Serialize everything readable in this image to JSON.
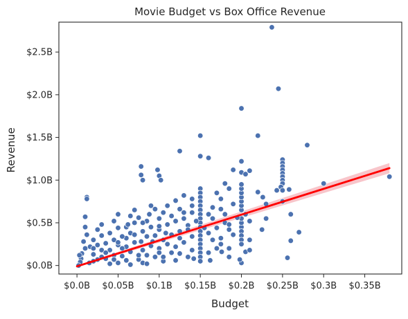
{
  "chart_data": {
    "type": "scatter",
    "title": "Movie Budget vs Box Office Revenue",
    "xlabel": "Budget",
    "ylabel": "Revenue",
    "xlim": [
      -0.022,
      0.395
    ],
    "ylim": [
      -0.1,
      2.85
    ],
    "x_ticks": [
      {
        "value": 0.0,
        "label": "$0.0B"
      },
      {
        "value": 0.05,
        "label": "$0.05B"
      },
      {
        "value": 0.1,
        "label": "$0.1B"
      },
      {
        "value": 0.15,
        "label": "$0.15B"
      },
      {
        "value": 0.2,
        "label": "$0.2B"
      },
      {
        "value": 0.25,
        "label": "$0.25B"
      },
      {
        "value": 0.3,
        "label": "$0.3B"
      },
      {
        "value": 0.35,
        "label": "$0.35B"
      }
    ],
    "y_ticks": [
      {
        "value": 0.0,
        "label": "$0.0B"
      },
      {
        "value": 0.5,
        "label": "$0.5B"
      },
      {
        "value": 1.0,
        "label": "$1.0B"
      },
      {
        "value": 1.5,
        "label": "$1.5B"
      },
      {
        "value": 2.0,
        "label": "$2.0B"
      },
      {
        "value": 2.5,
        "label": "$2.5B"
      }
    ],
    "grid": false,
    "legend": "none",
    "colors": {
      "points": "#4c72b0",
      "point_edge": "#ffffff",
      "regression": "#ff0000",
      "confidence_band": "#f4a6ad",
      "axes": "#262626"
    },
    "regression": {
      "x": [
        0.0,
        0.38
      ],
      "y": [
        -0.01,
        1.14
      ],
      "ci_half_width": [
        0.012,
        0.06
      ]
    },
    "points": [
      [
        0.237,
        2.79
      ],
      [
        0.245,
        2.07
      ],
      [
        0.2,
        1.84
      ],
      [
        0.28,
        1.41
      ],
      [
        0.22,
        1.52
      ],
      [
        0.15,
        1.52
      ],
      [
        0.125,
        1.34
      ],
      [
        0.15,
        1.28
      ],
      [
        0.16,
        1.26
      ],
      [
        0.2,
        1.22
      ],
      [
        0.25,
        1.24
      ],
      [
        0.25,
        1.2
      ],
      [
        0.25,
        1.16
      ],
      [
        0.25,
        1.12
      ],
      [
        0.25,
        1.08
      ],
      [
        0.21,
        1.11
      ],
      [
        0.25,
        1.04
      ],
      [
        0.25,
        1.0
      ],
      [
        0.25,
        0.96
      ],
      [
        0.248,
        0.92
      ],
      [
        0.243,
        0.88
      ],
      [
        0.25,
        0.88
      ],
      [
        0.3,
        0.96
      ],
      [
        0.38,
        1.04
      ],
      [
        0.2,
        1.09
      ],
      [
        0.19,
        1.12
      ],
      [
        0.205,
        1.07
      ],
      [
        0.078,
        1.16
      ],
      [
        0.098,
        1.12
      ],
      [
        0.078,
        1.06
      ],
      [
        0.1,
        1.05
      ],
      [
        0.08,
        1.0
      ],
      [
        0.102,
        1.0
      ],
      [
        0.012,
        0.8
      ],
      [
        0.012,
        0.78
      ],
      [
        0.01,
        0.57
      ],
      [
        0.258,
        0.89
      ],
      [
        0.22,
        0.86
      ],
      [
        0.226,
        0.8
      ],
      [
        0.26,
        0.6
      ],
      [
        0.27,
        0.39
      ],
      [
        0.26,
        0.29
      ],
      [
        0.256,
        0.09
      ],
      [
        0.25,
        0.75
      ],
      [
        0.23,
        0.72
      ],
      [
        0.2,
        0.03
      ],
      [
        0.198,
        0.07
      ],
      [
        0.205,
        0.16
      ],
      [
        0.185,
        0.2
      ],
      [
        0.176,
        0.16
      ],
      [
        0.23,
        0.55
      ],
      [
        0.225,
        0.42
      ],
      [
        0.21,
        0.3
      ],
      [
        0.21,
        0.52
      ],
      [
        0.205,
        0.6
      ],
      [
        0.2,
        0.65
      ],
      [
        0.2,
        0.7
      ],
      [
        0.2,
        0.75
      ],
      [
        0.2,
        0.8
      ],
      [
        0.2,
        0.85
      ],
      [
        0.2,
        0.9
      ],
      [
        0.2,
        0.95
      ],
      [
        0.2,
        0.45
      ],
      [
        0.2,
        0.4
      ],
      [
        0.2,
        0.35
      ],
      [
        0.2,
        0.3
      ],
      [
        0.2,
        0.25
      ],
      [
        0.2,
        0.5
      ],
      [
        0.2,
        0.55
      ],
      [
        0.18,
        0.96
      ],
      [
        0.185,
        0.9
      ],
      [
        0.17,
        0.85
      ],
      [
        0.175,
        0.78
      ],
      [
        0.15,
        0.9
      ],
      [
        0.15,
        0.85
      ],
      [
        0.15,
        0.8
      ],
      [
        0.15,
        0.75
      ],
      [
        0.15,
        0.7
      ],
      [
        0.15,
        0.65
      ],
      [
        0.15,
        0.6
      ],
      [
        0.15,
        0.55
      ],
      [
        0.15,
        0.5
      ],
      [
        0.15,
        0.45
      ],
      [
        0.15,
        0.4
      ],
      [
        0.15,
        0.35
      ],
      [
        0.15,
        0.3
      ],
      [
        0.15,
        0.25
      ],
      [
        0.15,
        0.2
      ],
      [
        0.15,
        0.15
      ],
      [
        0.15,
        0.1
      ],
      [
        0.15,
        0.05
      ],
      [
        0.16,
        0.38
      ],
      [
        0.165,
        0.55
      ],
      [
        0.17,
        0.44
      ],
      [
        0.175,
        0.32
      ],
      [
        0.18,
        0.6
      ],
      [
        0.18,
        0.5
      ],
      [
        0.185,
        0.42
      ],
      [
        0.19,
        0.36
      ],
      [
        0.175,
        0.25
      ],
      [
        0.17,
        0.2
      ],
      [
        0.16,
        0.15
      ],
      [
        0.14,
        0.78
      ],
      [
        0.13,
        0.82
      ],
      [
        0.12,
        0.76
      ],
      [
        0.14,
        0.62
      ],
      [
        0.13,
        0.55
      ],
      [
        0.135,
        0.47
      ],
      [
        0.125,
        0.4
      ],
      [
        0.14,
        0.34
      ],
      [
        0.13,
        0.27
      ],
      [
        0.12,
        0.22
      ],
      [
        0.14,
        0.18
      ],
      [
        0.135,
        0.1
      ],
      [
        0.12,
        0.06
      ],
      [
        0.11,
        0.7
      ],
      [
        0.105,
        0.62
      ],
      [
        0.1,
        0.55
      ],
      [
        0.11,
        0.48
      ],
      [
        0.1,
        0.42
      ],
      [
        0.115,
        0.36
      ],
      [
        0.105,
        0.3
      ],
      [
        0.11,
        0.25
      ],
      [
        0.1,
        0.2
      ],
      [
        0.1,
        0.15
      ],
      [
        0.095,
        0.1
      ],
      [
        0.105,
        0.05
      ],
      [
        0.09,
        0.7
      ],
      [
        0.088,
        0.6
      ],
      [
        0.085,
        0.52
      ],
      [
        0.09,
        0.45
      ],
      [
        0.08,
        0.4
      ],
      [
        0.085,
        0.34
      ],
      [
        0.078,
        0.28
      ],
      [
        0.09,
        0.23
      ],
      [
        0.08,
        0.18
      ],
      [
        0.085,
        0.12
      ],
      [
        0.075,
        0.07
      ],
      [
        0.08,
        0.03
      ],
      [
        0.07,
        0.65
      ],
      [
        0.065,
        0.58
      ],
      [
        0.07,
        0.5
      ],
      [
        0.06,
        0.45
      ],
      [
        0.065,
        0.38
      ],
      [
        0.06,
        0.32
      ],
      [
        0.07,
        0.27
      ],
      [
        0.06,
        0.22
      ],
      [
        0.065,
        0.16
      ],
      [
        0.055,
        0.11
      ],
      [
        0.06,
        0.06
      ],
      [
        0.05,
        0.03
      ],
      [
        0.05,
        0.6
      ],
      [
        0.045,
        0.52
      ],
      [
        0.05,
        0.44
      ],
      [
        0.04,
        0.38
      ],
      [
        0.045,
        0.3
      ],
      [
        0.05,
        0.24
      ],
      [
        0.04,
        0.18
      ],
      [
        0.045,
        0.12
      ],
      [
        0.035,
        0.08
      ],
      [
        0.04,
        0.02
      ],
      [
        0.03,
        0.48
      ],
      [
        0.025,
        0.42
      ],
      [
        0.03,
        0.35
      ],
      [
        0.02,
        0.3
      ],
      [
        0.025,
        0.24
      ],
      [
        0.03,
        0.18
      ],
      [
        0.02,
        0.13
      ],
      [
        0.025,
        0.07
      ],
      [
        0.015,
        0.03
      ],
      [
        0.01,
        0.45
      ],
      [
        0.012,
        0.36
      ],
      [
        0.008,
        0.28
      ],
      [
        0.01,
        0.2
      ],
      [
        0.006,
        0.14
      ],
      [
        0.005,
        0.08
      ],
      [
        0.004,
        0.04
      ],
      [
        0.002,
        0.0
      ],
      [
        0.003,
        0.12
      ],
      [
        0.02,
        0.05
      ],
      [
        0.035,
        0.15
      ],
      [
        0.055,
        0.2
      ],
      [
        0.075,
        0.12
      ],
      [
        0.095,
        0.35
      ],
      [
        0.115,
        0.15
      ],
      [
        0.125,
        0.32
      ],
      [
        0.135,
        0.42
      ],
      [
        0.145,
        0.52
      ],
      [
        0.155,
        0.44
      ],
      [
        0.165,
        0.3
      ],
      [
        0.115,
        0.58
      ],
      [
        0.125,
        0.66
      ],
      [
        0.095,
        0.66
      ],
      [
        0.075,
        0.56
      ],
      [
        0.055,
        0.34
      ],
      [
        0.035,
        0.26
      ],
      [
        0.016,
        0.22
      ],
      [
        0.045,
        0.07
      ],
      [
        0.065,
        0.01
      ],
      [
        0.085,
        0.02
      ],
      [
        0.105,
        0.1
      ],
      [
        0.125,
        0.14
      ],
      [
        0.142,
        0.08
      ],
      [
        0.162,
        0.06
      ],
      [
        0.185,
        0.1
      ],
      [
        0.21,
        0.18
      ],
      [
        0.165,
        0.68
      ],
      [
        0.175,
        0.66
      ],
      [
        0.19,
        0.72
      ],
      [
        0.195,
        0.56
      ],
      [
        0.185,
        0.48
      ],
      [
        0.16,
        0.6
      ],
      [
        0.14,
        0.7
      ],
      [
        0.13,
        0.62
      ],
      [
        0.12,
        0.52
      ],
      [
        0.1,
        0.46
      ],
      [
        0.08,
        0.5
      ],
      [
        0.07,
        0.36
      ],
      [
        0.05,
        0.27
      ],
      [
        0.03,
        0.1
      ],
      [
        0.02,
        0.2
      ],
      [
        0.062,
        0.48
      ],
      [
        0.092,
        0.28
      ],
      [
        0.108,
        0.38
      ]
    ]
  }
}
